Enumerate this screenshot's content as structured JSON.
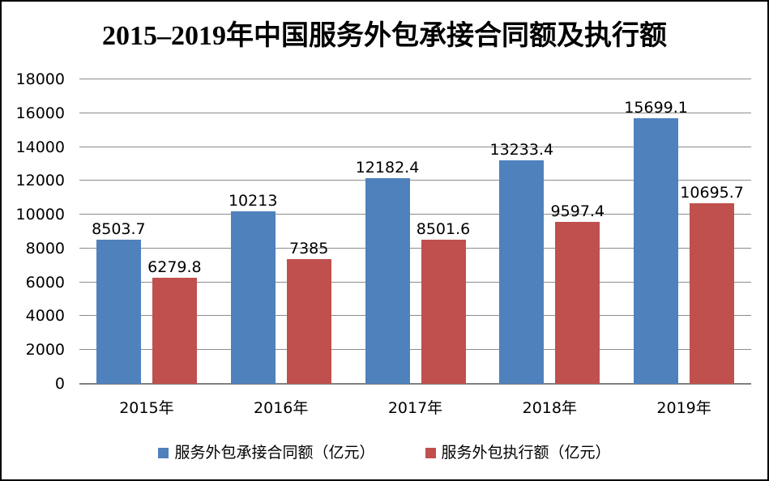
{
  "page": {
    "background": "#FFFFFF",
    "border_color": "#000000"
  },
  "chart_data": {
    "type": "bar",
    "title": "2015–2019年中国服务外包承接合同额及执行额",
    "categories": [
      "2015年",
      "2016年",
      "2017年",
      "2018年",
      "2019年"
    ],
    "series": [
      {
        "name": "服务外包承接合同额（亿元）",
        "color": "#4F81BD",
        "values": [
          8503.7,
          10213,
          12182.4,
          13233.4,
          15699.1
        ]
      },
      {
        "name": "服务外包执行额（亿元）",
        "color": "#C0504D",
        "values": [
          6279.8,
          7385,
          8501.6,
          9597.4,
          10695.7
        ]
      }
    ],
    "xlabel": "",
    "ylabel": "",
    "ylim": [
      0,
      18000
    ],
    "y_ticks": [
      0,
      2000,
      4000,
      6000,
      8000,
      10000,
      12000,
      14000,
      16000,
      18000
    ],
    "grid": true,
    "gridline_color": "#8C8C8C",
    "axis_line_color": "#808080",
    "data_labels": true,
    "legend_position": "bottom"
  }
}
